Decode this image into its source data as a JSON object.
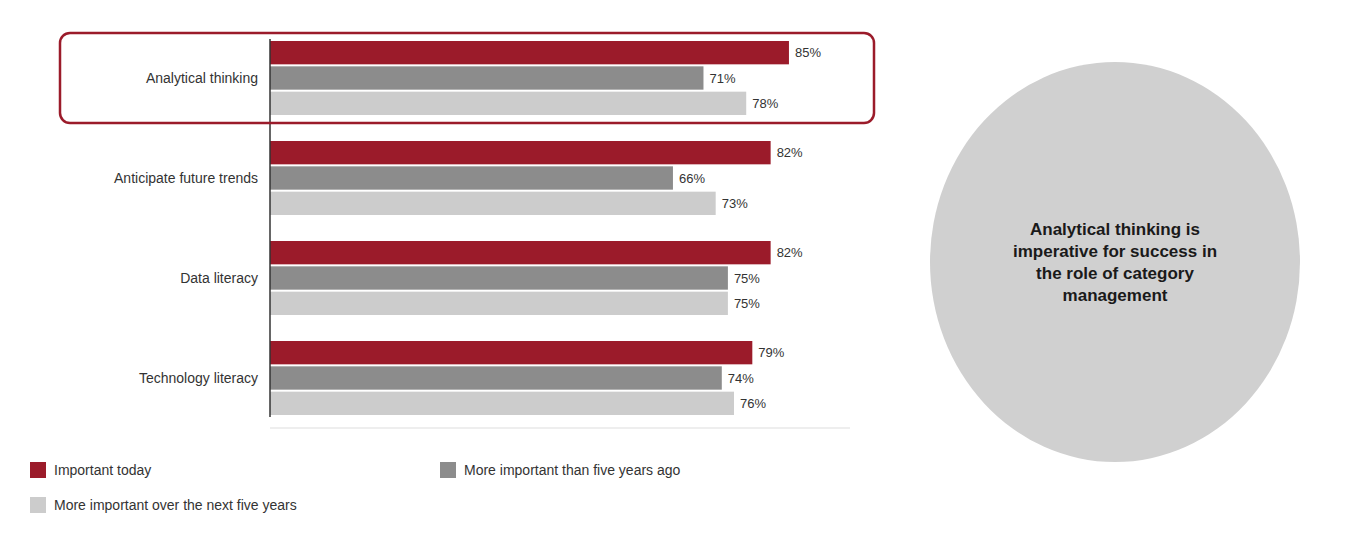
{
  "chart_data": {
    "type": "bar",
    "orientation": "horizontal",
    "categories": [
      "Analytical thinking",
      "Anticipate future trends",
      "Data literacy",
      "Technology literacy"
    ],
    "series": [
      {
        "name": "Important today",
        "color": "#9B1B2A",
        "values": [
          85,
          82,
          82,
          79
        ],
        "value_labels": [
          "85%",
          "82%",
          "82%",
          "79%"
        ]
      },
      {
        "name": "More important than five years ago",
        "color": "#8C8C8C",
        "values": [
          71,
          66,
          75,
          74
        ],
        "value_labels": [
          "71%",
          "66%",
          "75%",
          "74%"
        ]
      },
      {
        "name": "More important over the next five years",
        "color": "#CCCCCC",
        "values": [
          78,
          73,
          75,
          76
        ],
        "value_labels": [
          "78%",
          "73%",
          "75%",
          "76%"
        ]
      }
    ],
    "xlim": [
      0,
      95
    ],
    "data_labels": true,
    "tick_labels": "y",
    "legend": "bottom",
    "annotations": [
      {
        "text": "Analytical thinking is\nimperative for success in\nthe role of category\nmanagement"
      }
    ]
  }
}
